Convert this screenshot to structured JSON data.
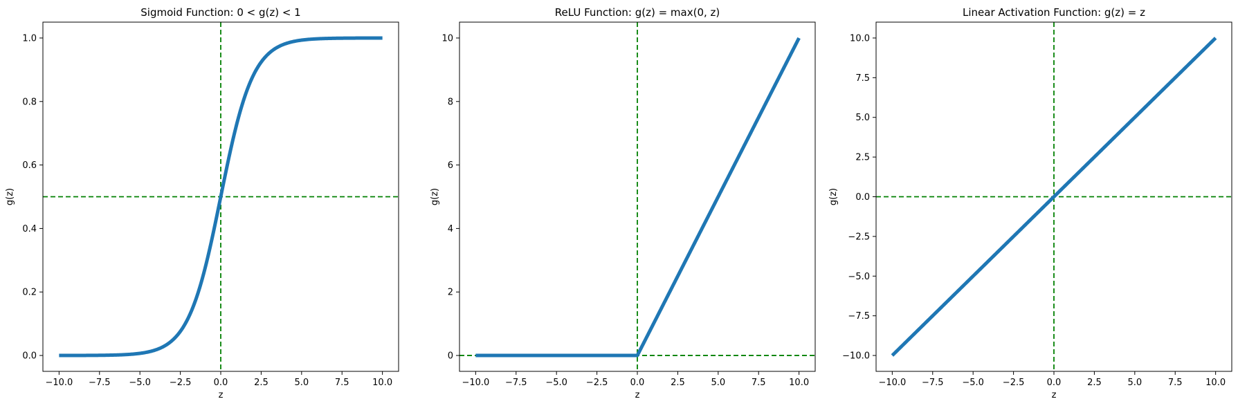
{
  "colors": {
    "curve": "#1f77b4",
    "reference_line": "#008000"
  },
  "chart_data": [
    {
      "type": "line",
      "title": "Sigmoid Function: 0 < g(z) < 1",
      "function": "sigmoid",
      "xlabel": "z",
      "ylabel": "g(z)",
      "xlim": [
        -11.0,
        11.0
      ],
      "ylim": [
        -0.05,
        1.05
      ],
      "xticks": [
        -10.0,
        -7.5,
        -5.0,
        -2.5,
        0.0,
        2.5,
        5.0,
        7.5,
        10.0
      ],
      "xtick_labels": [
        "−10.0",
        "−7.5",
        "−5.0",
        "−2.5",
        "0.0",
        "2.5",
        "5.0",
        "7.5",
        "10.0"
      ],
      "yticks": [
        0.0,
        0.2,
        0.4,
        0.6,
        0.8,
        1.0
      ],
      "ytick_labels": [
        "0.0",
        "0.2",
        "0.4",
        "0.6",
        "0.8",
        "1.0"
      ],
      "x": [
        -10.0,
        -7.5,
        -5.0,
        -2.5,
        0.0,
        2.5,
        5.0,
        7.5,
        10.0
      ],
      "y": [
        5e-05,
        0.0006,
        0.0067,
        0.0759,
        0.5,
        0.9241,
        0.9933,
        0.9994,
        0.99995
      ],
      "vline": 0,
      "hline": 0.5,
      "grid": false
    },
    {
      "type": "line",
      "title": "ReLU Function: g(z) = max(0, z)",
      "function": "relu",
      "xlabel": "z",
      "ylabel": "g(z)",
      "xlim": [
        -11.0,
        11.0
      ],
      "ylim": [
        -0.5,
        10.5
      ],
      "xticks": [
        -10.0,
        -7.5,
        -5.0,
        -2.5,
        0.0,
        2.5,
        5.0,
        7.5,
        10.0
      ],
      "xtick_labels": [
        "−10.0",
        "−7.5",
        "−5.0",
        "−2.5",
        "0.0",
        "2.5",
        "5.0",
        "7.5",
        "10.0"
      ],
      "yticks": [
        0,
        2,
        4,
        6,
        8,
        10
      ],
      "ytick_labels": [
        "0",
        "2",
        "4",
        "6",
        "8",
        "10"
      ],
      "x": [
        -10.0,
        0.0,
        10.0
      ],
      "y": [
        0.0,
        0.0,
        10.0
      ],
      "vline": 0,
      "hline": 0,
      "grid": false
    },
    {
      "type": "line",
      "title": "Linear Activation Function: g(z) = z",
      "function": "linear",
      "xlabel": "z",
      "ylabel": "g(z)",
      "xlim": [
        -11.0,
        11.0
      ],
      "ylim": [
        -11.0,
        11.0
      ],
      "xticks": [
        -10.0,
        -7.5,
        -5.0,
        -2.5,
        0.0,
        2.5,
        5.0,
        7.5,
        10.0
      ],
      "xtick_labels": [
        "−10.0",
        "−7.5",
        "−5.0",
        "−2.5",
        "0.0",
        "2.5",
        "5.0",
        "7.5",
        "10.0"
      ],
      "yticks": [
        -10.0,
        -7.5,
        -5.0,
        -2.5,
        0.0,
        2.5,
        5.0,
        7.5,
        10.0
      ],
      "ytick_labels": [
        "−10.0",
        "−7.5",
        "−5.0",
        "−2.5",
        "0.0",
        "2.5",
        "5.0",
        "7.5",
        "10.0"
      ],
      "x": [
        -10.0,
        10.0
      ],
      "y": [
        -10.0,
        10.0
      ],
      "vline": 0,
      "hline": 0,
      "grid": false
    }
  ]
}
